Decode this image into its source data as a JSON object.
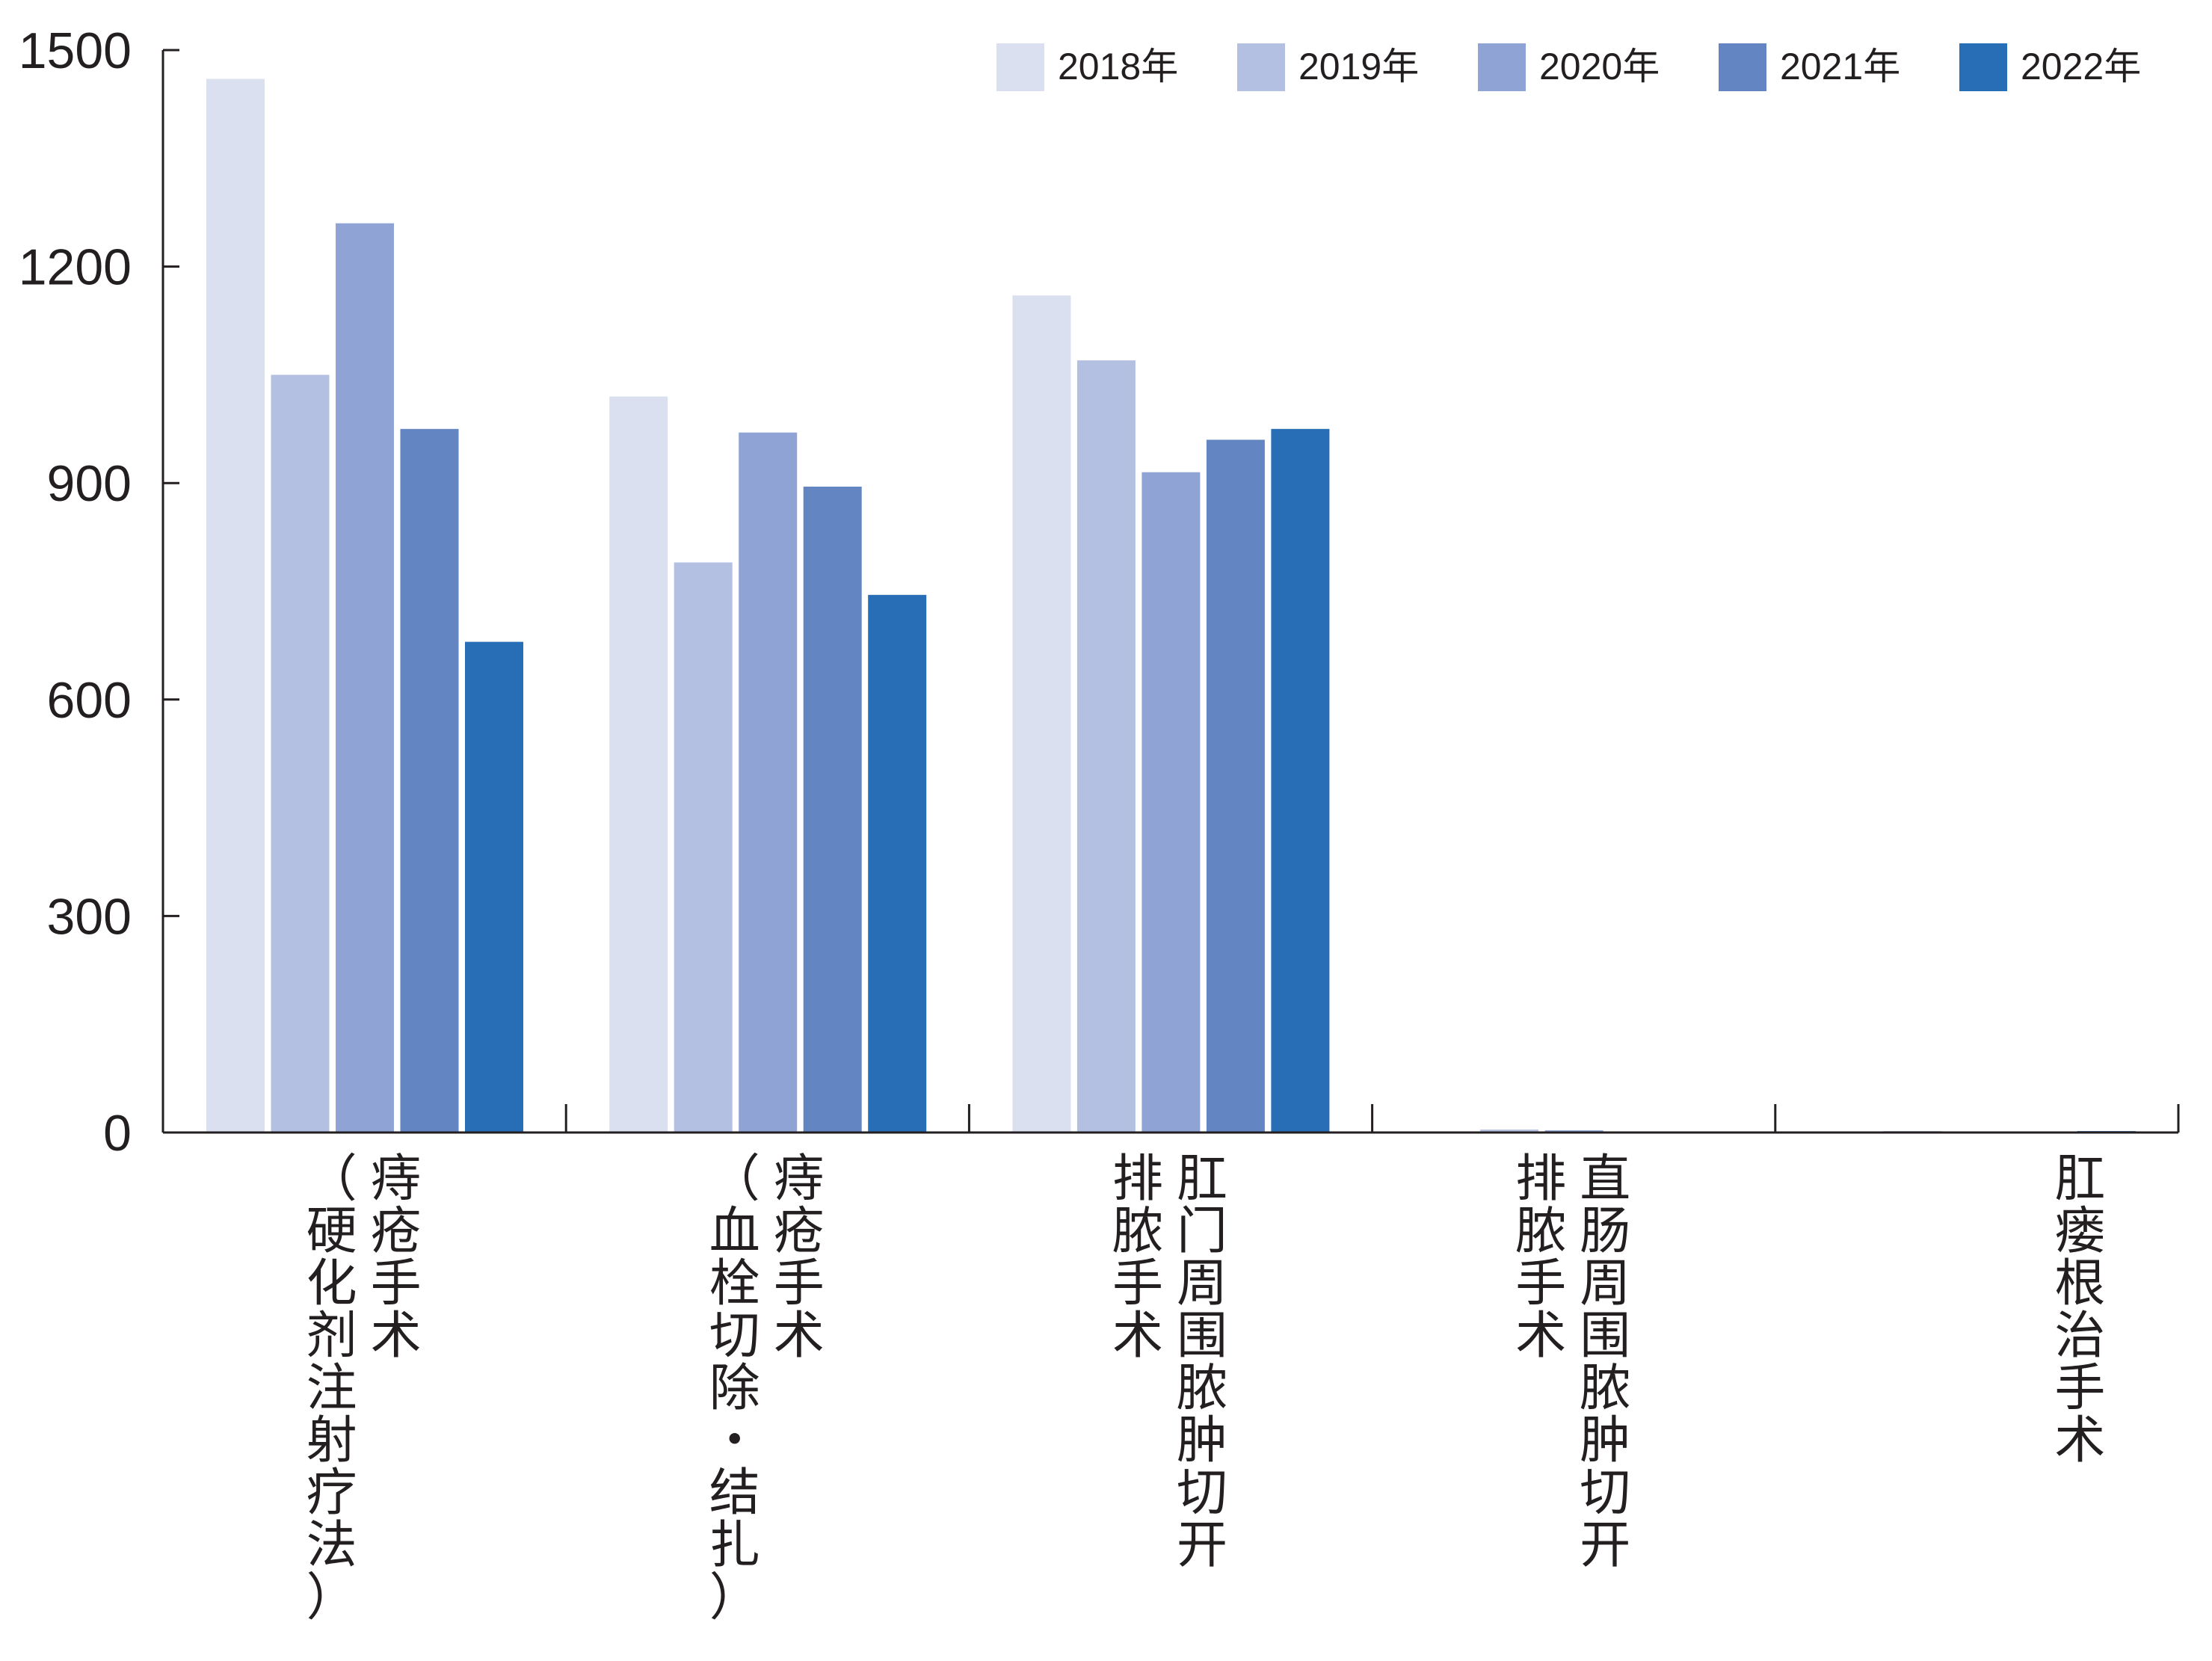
{
  "chart_data": {
    "type": "bar",
    "title": "",
    "xlabel": "",
    "ylabel": "",
    "ylim": [
      0,
      1500
    ],
    "yticks": [
      "0",
      "300",
      "600",
      "900",
      "1200",
      "1500"
    ],
    "ytick_values": [
      0,
      300,
      600,
      900,
      1200,
      1500
    ],
    "grid": false,
    "legend_position": "top-right",
    "categories": [
      "痔疮手术（硬化剂注射疗法）",
      "痔疮手术（血栓切除・结扎）",
      "肛门周围脓肿切开排脓手术",
      "直肠周围脓肿切开排脓手术",
      "肛瘘根治手术"
    ],
    "category_label_columns": [
      [
        "痔疮手术",
        "（硬化剂注射疗法）"
      ],
      [
        "痔疮手术",
        "（血栓切除・结扎）"
      ],
      [
        "肛门周围脓肿切开",
        "排脓手术"
      ],
      [
        "直肠周围脓肿切开",
        "排脓手术"
      ],
      [
        "肛瘘根治手术"
      ]
    ],
    "series": [
      {
        "name": "2018年",
        "color": "#dbe0f0",
        "values": [
          1460,
          1020,
          1160,
          1,
          0
        ]
      },
      {
        "name": "2019年",
        "color": "#b4c0e1",
        "values": [
          1050,
          790,
          1070,
          4,
          2
        ]
      },
      {
        "name": "2020年",
        "color": "#8fa4d4",
        "values": [
          1260,
          970,
          915,
          3,
          1
        ]
      },
      {
        "name": "2021年",
        "color": "#6386c3",
        "values": [
          975,
          895,
          960,
          1,
          1
        ]
      },
      {
        "name": "2022年",
        "color": "#286eb7",
        "values": [
          680,
          745,
          975,
          1,
          2
        ]
      }
    ]
  }
}
